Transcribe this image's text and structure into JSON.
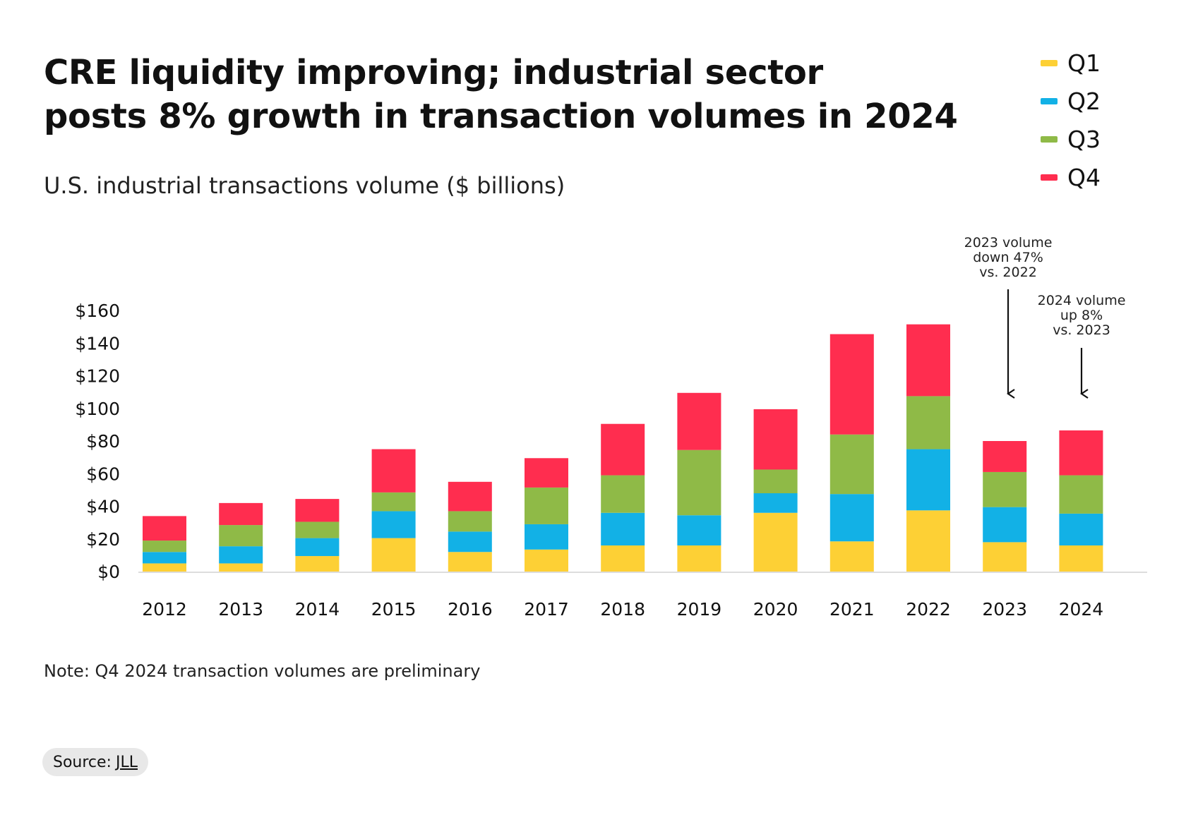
{
  "header": {
    "title_line1": "CRE liquidity improving; industrial sector",
    "title_line2": "posts 8% growth in transaction volumes in 2024",
    "subtitle": "U.S. industrial transactions volume ($ billions)"
  },
  "legend": [
    {
      "label": "Q1",
      "color": "#FDD035"
    },
    {
      "label": "Q2",
      "color": "#12B1E6"
    },
    {
      "label": "Q3",
      "color": "#8FBA47"
    },
    {
      "label": "Q4",
      "color": "#FF2D4F"
    }
  ],
  "annotations": [
    {
      "line1": "2023 volume",
      "line2": "down 47%",
      "line3": "vs. 2022"
    },
    {
      "line1": "2024 volume",
      "line2": "up 8%",
      "line3": "vs. 2023"
    }
  ],
  "note": "Note: Q4 2024 transaction volumes are preliminary",
  "source": {
    "label": "Source:",
    "link": "JLL"
  },
  "chart_data": {
    "type": "bar",
    "stacked": true,
    "title": "CRE liquidity improving; industrial sector posts 8% growth in transaction volumes in 2024",
    "ylabel": "U.S. industrial transactions volume ($ billions)",
    "categories": [
      "2012",
      "2013",
      "2014",
      "2015",
      "2016",
      "2017",
      "2018",
      "2019",
      "2020",
      "2021",
      "2022",
      "2023",
      "2024"
    ],
    "yticks": [
      "$0",
      "$20",
      "$40",
      "$60",
      "$80",
      "$100",
      "$120",
      "$140",
      "$160"
    ],
    "ylim": [
      0,
      160
    ],
    "grid": false,
    "legend_position": "top-right",
    "series": [
      {
        "name": "Q1",
        "color": "#FDD035",
        "values": [
          5,
          5,
          9.5,
          20.5,
          12,
          13.5,
          16,
          16,
          36,
          18.5,
          37.5,
          18,
          16
        ]
      },
      {
        "name": "Q2",
        "color": "#12B1E6",
        "values": [
          7,
          10.5,
          11,
          16.5,
          12.5,
          15.5,
          20,
          18.5,
          12,
          29,
          37.5,
          21.5,
          19.5
        ]
      },
      {
        "name": "Q3",
        "color": "#8FBA47",
        "values": [
          7,
          13,
          10,
          11.5,
          12.5,
          22.5,
          23,
          40,
          14.5,
          36.5,
          32.5,
          21.5,
          23.5
        ]
      },
      {
        "name": "Q4",
        "color": "#FF2D4F",
        "values": [
          15,
          13.5,
          14,
          26.5,
          18,
          18,
          31.5,
          35,
          37,
          61.5,
          44,
          19,
          27.5
        ]
      }
    ]
  }
}
